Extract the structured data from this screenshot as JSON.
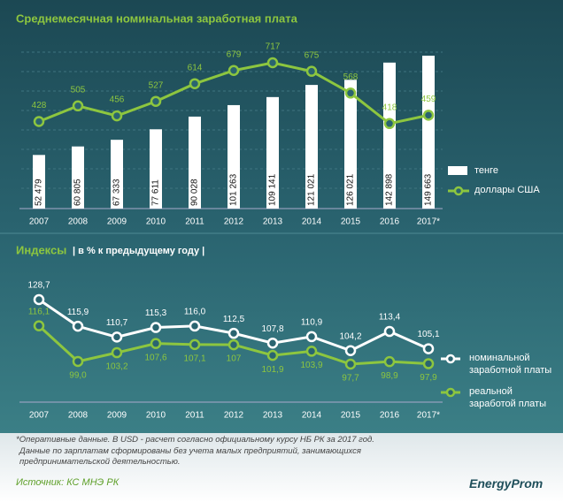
{
  "chart_data": [
    {
      "type": "combo",
      "title": "Среднемесячная номинальная заработная плата",
      "categories": [
        "2007",
        "2008",
        "2009",
        "2010",
        "2011",
        "2012",
        "2013",
        "2014",
        "2015",
        "2016",
        "2017*"
      ],
      "series": [
        {
          "name": "тенге",
          "type": "bar",
          "color": "#ffffff",
          "values": [
            52479,
            60805,
            67333,
            77611,
            90028,
            101263,
            109141,
            121021,
            126021,
            142898,
            149663
          ],
          "value_labels": [
            "52 479",
            "60 805",
            "67 333",
            "77 611",
            "90 028",
            "101 263",
            "109 141",
            "121 021",
            "126 021",
            "142 898",
            "149 663"
          ]
        },
        {
          "name": "доллары США",
          "type": "line",
          "color": "#8dc63f",
          "values": [
            428,
            505,
            456,
            527,
            614,
            679,
            717,
            675,
            568,
            418,
            459
          ]
        }
      ]
    },
    {
      "type": "line",
      "title": "Индексы",
      "subtitle": "| в % к предыдущему году |",
      "categories": [
        "2007",
        "2008",
        "2009",
        "2010",
        "2011",
        "2012",
        "2013",
        "2014",
        "2015",
        "2016",
        "2017*"
      ],
      "series": [
        {
          "name": "номинальной заработной платы",
          "color": "#ffffff",
          "values": [
            128.7,
            115.9,
            110.7,
            115.3,
            116.0,
            112.5,
            107.8,
            110.9,
            104.2,
            113.4,
            105.1
          ],
          "value_labels": [
            "128,7",
            "115,9",
            "110,7",
            "115,3",
            "116,0",
            "112,5",
            "107,8",
            "110,9",
            "104,2",
            "113,4",
            "105,1"
          ]
        },
        {
          "name": "реальной заработой платы",
          "color": "#8dc63f",
          "values": [
            116.1,
            99.0,
            103.2,
            107.6,
            107.1,
            107,
            101.9,
            103.9,
            97.7,
            98.9,
            97.9
          ],
          "value_labels": [
            "116,1",
            "99,0",
            "103,2",
            "107,6",
            "107,1",
            "107",
            "101,9",
            "103,9",
            "97,7",
            "98,9",
            "97,9"
          ]
        }
      ]
    }
  ],
  "notes": [
    "*Оперативные данные. В USD - расчет согласно официальному курсу НБ РК за 2017 год.",
    "Данные по зарплатам сформированы без учета малых предприятий, занимающихся предпринимательской деятельностью."
  ],
  "source": "Источник: КС МНЭ РК",
  "logo": "EnergyProm"
}
